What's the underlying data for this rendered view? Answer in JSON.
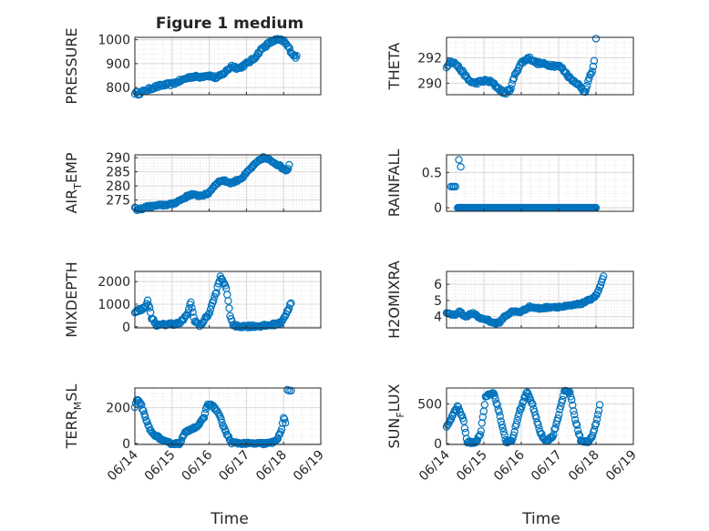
{
  "figure": {
    "title": "Figure 1 medium",
    "xlabel": "Time"
  },
  "colors": {
    "marker": "#0072bd",
    "axis": "#262626",
    "grid": "#d9d9d9"
  },
  "chart_data": [
    {
      "type": "scatter",
      "id": "pressure",
      "title": "Figure 1 medium",
      "ylabel": "PRESSURE",
      "ylim": [
        770,
        1010
      ],
      "yticks": [
        800,
        900,
        1000
      ],
      "xlim": [
        0,
        5
      ],
      "xticks": [],
      "xticklabels": [],
      "keypoints": [
        [
          0,
          778
        ],
        [
          0.1,
          775
        ],
        [
          0.25,
          785
        ],
        [
          0.5,
          800
        ],
        [
          0.75,
          810
        ],
        [
          1.0,
          815
        ],
        [
          1.25,
          830
        ],
        [
          1.5,
          845
        ],
        [
          1.75,
          845
        ],
        [
          1.9,
          850
        ],
        [
          2.0,
          850
        ],
        [
          2.2,
          840
        ],
        [
          2.4,
          860
        ],
        [
          2.6,
          890
        ],
        [
          2.8,
          880
        ],
        [
          3.0,
          900
        ],
        [
          3.2,
          920
        ],
        [
          3.4,
          960
        ],
        [
          3.6,
          985
        ],
        [
          3.8,
          1000
        ],
        [
          4.0,
          995
        ],
        [
          4.1,
          975
        ],
        [
          4.2,
          950
        ],
        [
          4.3,
          930
        ],
        [
          4.35,
          928
        ]
      ],
      "n": 160,
      "noise": 6
    },
    {
      "type": "scatter",
      "id": "theta",
      "ylabel": "THETA",
      "ylim": [
        289.1,
        293.6
      ],
      "yticks": [
        290,
        292
      ],
      "xlim": [
        0,
        5
      ],
      "xticks": [],
      "xticklabels": [],
      "keypoints": [
        [
          0,
          291.2
        ],
        [
          0.1,
          291.8
        ],
        [
          0.25,
          291.5
        ],
        [
          0.45,
          290.8
        ],
        [
          0.6,
          290.2
        ],
        [
          0.75,
          290.0
        ],
        [
          1.0,
          290.2
        ],
        [
          1.2,
          290.1
        ],
        [
          1.35,
          289.7
        ],
        [
          1.55,
          289.2
        ],
        [
          1.7,
          289.5
        ],
        [
          1.85,
          290.8
        ],
        [
          2.0,
          291.6
        ],
        [
          2.2,
          292.0
        ],
        [
          2.4,
          291.6
        ],
        [
          2.6,
          291.5
        ],
        [
          2.85,
          291.4
        ],
        [
          3.05,
          291.3
        ],
        [
          3.2,
          290.8
        ],
        [
          3.3,
          290.4
        ],
        [
          3.5,
          290.0
        ],
        [
          3.6,
          289.6
        ],
        [
          3.7,
          289.3
        ],
        [
          3.8,
          290.2
        ],
        [
          3.9,
          291.0
        ],
        [
          3.95,
          291.7
        ]
      ],
      "extra": [
        [
          4.0,
          293.5
        ]
      ],
      "n": 150,
      "noise": 0.12
    },
    {
      "type": "scatter",
      "id": "air_temp",
      "ylabel": "AIR_TEMP",
      "ylim": [
        271,
        291
      ],
      "yticks": [
        275,
        280,
        285,
        290
      ],
      "xlim": [
        0,
        5
      ],
      "xticks": [],
      "xticklabels": [],
      "keypoints": [
        [
          0,
          272
        ],
        [
          0.1,
          271.5
        ],
        [
          0.3,
          272.5
        ],
        [
          0.6,
          273
        ],
        [
          1.0,
          273.5
        ],
        [
          1.3,
          275.5
        ],
        [
          1.5,
          277
        ],
        [
          1.7,
          276.5
        ],
        [
          1.95,
          277
        ],
        [
          2.2,
          281
        ],
        [
          2.35,
          282
        ],
        [
          2.6,
          281
        ],
        [
          2.9,
          283
        ],
        [
          3.1,
          286
        ],
        [
          3.3,
          288.5
        ],
        [
          3.45,
          290
        ],
        [
          3.65,
          289
        ],
        [
          3.85,
          287.5
        ],
        [
          4.0,
          286
        ],
        [
          4.1,
          285.5
        ],
        [
          4.15,
          287.5
        ]
      ],
      "n": 150,
      "noise": 0.4
    },
    {
      "type": "scatter",
      "id": "rainfall",
      "ylabel": "RAINFALL",
      "ylim": [
        -0.05,
        0.75
      ],
      "yticks": [
        0,
        0.5
      ],
      "xlim": [
        0,
        5
      ],
      "xticks": [],
      "xticklabels": [],
      "keypoints": [
        [
          0.3,
          0
        ],
        [
          4.0,
          0
        ]
      ],
      "extra": [
        [
          0.12,
          0.3
        ],
        [
          0.16,
          0.3
        ],
        [
          0.2,
          0.3
        ],
        [
          0.24,
          0.3
        ],
        [
          0.33,
          0.68
        ],
        [
          0.38,
          0.58
        ]
      ],
      "n": 260,
      "noise": 0
    },
    {
      "type": "scatter",
      "id": "mixdepth",
      "ylabel": "MIXDEPTH",
      "ylim": [
        -50,
        2450
      ],
      "yticks": [
        0,
        1000,
        2000
      ],
      "xlim": [
        0,
        5
      ],
      "xticks": [],
      "xticklabels": [],
      "keypoints": [
        [
          0,
          600
        ],
        [
          0.1,
          750
        ],
        [
          0.25,
          800
        ],
        [
          0.35,
          1150
        ],
        [
          0.45,
          400
        ],
        [
          0.6,
          50
        ],
        [
          0.9,
          120
        ],
        [
          1.2,
          150
        ],
        [
          1.4,
          500
        ],
        [
          1.5,
          1100
        ],
        [
          1.6,
          300
        ],
        [
          1.75,
          30
        ],
        [
          2.0,
          600
        ],
        [
          2.2,
          1600
        ],
        [
          2.3,
          2200
        ],
        [
          2.45,
          1800
        ],
        [
          2.55,
          600
        ],
        [
          2.65,
          30
        ],
        [
          3.0,
          20
        ],
        [
          3.5,
          40
        ],
        [
          3.9,
          150
        ],
        [
          4.05,
          500
        ],
        [
          4.2,
          1050
        ]
      ],
      "n": 160,
      "noise": 60
    },
    {
      "type": "scatter",
      "id": "h2omixra",
      "ylabel": "H2OMIXRA",
      "ylim": [
        3.3,
        6.8
      ],
      "yticks": [
        4,
        5,
        6
      ],
      "xlim": [
        0,
        5
      ],
      "xticks": [],
      "xticklabels": [],
      "keypoints": [
        [
          0,
          4.2
        ],
        [
          0.2,
          4.1
        ],
        [
          0.35,
          4.3
        ],
        [
          0.5,
          4.0
        ],
        [
          0.7,
          4.2
        ],
        [
          0.9,
          3.9
        ],
        [
          1.1,
          3.8
        ],
        [
          1.25,
          3.6
        ],
        [
          1.4,
          3.6
        ],
        [
          1.55,
          4.0
        ],
        [
          1.75,
          4.3
        ],
        [
          2.0,
          4.3
        ],
        [
          2.2,
          4.6
        ],
        [
          2.5,
          4.5
        ],
        [
          2.8,
          4.6
        ],
        [
          3.1,
          4.6
        ],
        [
          3.4,
          4.7
        ],
        [
          3.6,
          4.8
        ],
        [
          3.8,
          5.0
        ],
        [
          4.0,
          5.3
        ],
        [
          4.1,
          5.8
        ],
        [
          4.2,
          6.5
        ]
      ],
      "n": 160,
      "noise": 0.06
    },
    {
      "type": "scatter",
      "id": "terr_msl",
      "ylabel": "TERR_MSL",
      "ylim": [
        -5,
        310
      ],
      "yticks": [
        0,
        200
      ],
      "xlim": [
        0,
        5
      ],
      "xticks": [
        0,
        1,
        2,
        3,
        4,
        5
      ],
      "xticklabels": [
        "06/14",
        "06/15",
        "06/16",
        "06/17",
        "06/18",
        "06/19"
      ],
      "keypoints": [
        [
          0,
          200
        ],
        [
          0.05,
          240
        ],
        [
          0.15,
          230
        ],
        [
          0.3,
          130
        ],
        [
          0.45,
          60
        ],
        [
          0.6,
          40
        ],
        [
          0.8,
          10
        ],
        [
          1.0,
          0
        ],
        [
          1.2,
          0
        ],
        [
          1.35,
          60
        ],
        [
          1.5,
          80
        ],
        [
          1.7,
          100
        ],
        [
          1.85,
          140
        ],
        [
          1.95,
          220
        ],
        [
          2.1,
          210
        ],
        [
          2.25,
          170
        ],
        [
          2.45,
          60
        ],
        [
          2.6,
          5
        ],
        [
          3.0,
          0
        ],
        [
          3.5,
          0
        ],
        [
          3.7,
          5
        ],
        [
          3.85,
          30
        ],
        [
          3.95,
          80
        ],
        [
          4.0,
          150
        ],
        [
          4.05,
          110
        ]
      ],
      "extra": [
        [
          4.1,
          300
        ],
        [
          4.15,
          295
        ],
        [
          4.2,
          295
        ]
      ],
      "n": 160,
      "noise": 6
    },
    {
      "type": "scatter",
      "id": "sun_flux",
      "ylabel": "SUN_FLUX",
      "ylim": [
        -10,
        700
      ],
      "yticks": [
        0,
        500
      ],
      "xlim": [
        0,
        5
      ],
      "xticks": [
        0,
        1,
        2,
        3,
        4,
        5
      ],
      "xticklabels": [
        "06/14",
        "06/15",
        "06/16",
        "06/17",
        "06/18",
        "06/19"
      ],
      "keypoints": [
        [
          0,
          200
        ],
        [
          0.15,
          350
        ],
        [
          0.3,
          470
        ],
        [
          0.45,
          300
        ],
        [
          0.55,
          20
        ],
        [
          0.75,
          10
        ],
        [
          0.9,
          100
        ],
        [
          1.05,
          600
        ],
        [
          1.25,
          650
        ],
        [
          1.35,
          500
        ],
        [
          1.5,
          200
        ],
        [
          1.6,
          20
        ],
        [
          1.75,
          30
        ],
        [
          1.95,
          400
        ],
        [
          2.15,
          650
        ],
        [
          2.3,
          500
        ],
        [
          2.5,
          150
        ],
        [
          2.65,
          20
        ],
        [
          2.85,
          100
        ],
        [
          3.05,
          450
        ],
        [
          3.15,
          660
        ],
        [
          3.3,
          650
        ],
        [
          3.45,
          300
        ],
        [
          3.6,
          30
        ],
        [
          3.8,
          20
        ],
        [
          3.9,
          100
        ],
        [
          4.0,
          250
        ],
        [
          4.1,
          480
        ]
      ],
      "n": 170,
      "noise": 15
    }
  ],
  "sub": {
    "y_names": [
      "PRESSURE",
      "THETA",
      "AIR",
      "TEMP",
      "RAINFALL",
      "MIXDEPTH",
      "H2OMIXRA",
      "TERR",
      "M",
      "SL",
      "SUN",
      "F",
      "LUX"
    ]
  }
}
